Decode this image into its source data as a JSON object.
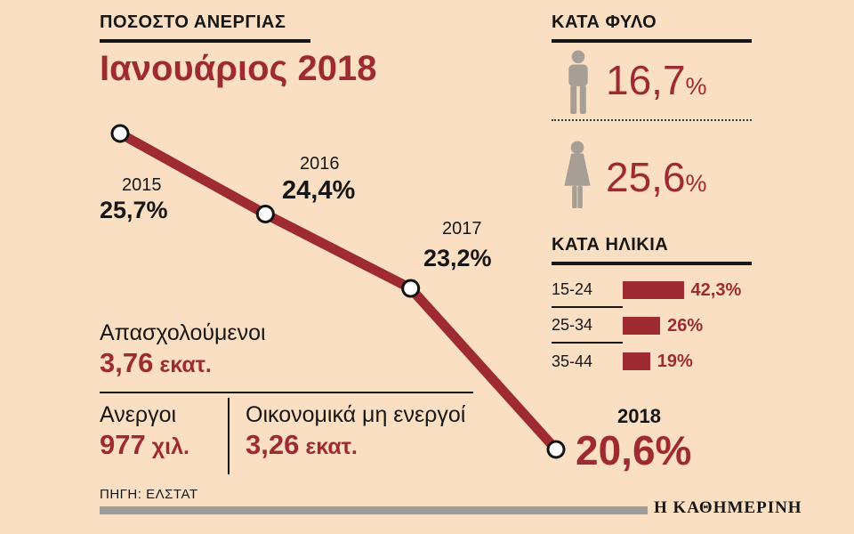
{
  "colors": {
    "background": "#fbdfc3",
    "accent": "#9e2b32",
    "figure_gray": "#a79f96",
    "footer_bar": "#9c9c9c"
  },
  "header": {
    "kicker": "ΠΟΣΟΣΤΟ ΑΝΕΡΓΙΑΣ",
    "title": "Ιανουάριος 2018"
  },
  "chart_data": [
    {
      "type": "line",
      "title": "ΠΟΣΟΣΤΟ ΑΝΕΡΓΙΑΣ — Ιανουάριος 2018",
      "x": [
        "2015",
        "2016",
        "2017",
        "2018"
      ],
      "values": [
        25.7,
        24.4,
        23.2,
        20.6
      ],
      "value_labels": [
        "25,7%",
        "24,4%",
        "23,2%",
        "20,6%"
      ],
      "unit": "%",
      "ylim": [
        20.6,
        25.7
      ],
      "grid": false,
      "legend": "none"
    },
    {
      "type": "table",
      "title": "ΚΑΤΑ ΦΥΛΟ",
      "categories": [
        "male",
        "female"
      ],
      "values": [
        16.7,
        25.6
      ],
      "value_labels": [
        "16,7",
        "25,6"
      ],
      "unit": "%"
    },
    {
      "type": "bar",
      "title": "ΚΑΤΑ ΗΛΙΚΙΑ",
      "categories": [
        "15-24",
        "25-34",
        "35-44"
      ],
      "values": [
        42.3,
        26,
        19
      ],
      "value_labels": [
        "42,3%",
        "26%",
        "19%"
      ],
      "unit": "%"
    }
  ],
  "stats": {
    "employed": {
      "label": "Απασχολούμενοι",
      "num": "3,76",
      "unit": "εκατ."
    },
    "unemployed": {
      "label": "Ανεργοι",
      "num": "977",
      "unit": "χιλ."
    },
    "inactive": {
      "label": "Οικονομικά μη ενεργοί",
      "num": "3,26",
      "unit": "εκατ."
    }
  },
  "footer": {
    "source": "ΠΗΓΗ: ΕΛΣΤΑΤ",
    "brand": "Η ΚΑΘΗΜΕΡΙΝΗ"
  }
}
